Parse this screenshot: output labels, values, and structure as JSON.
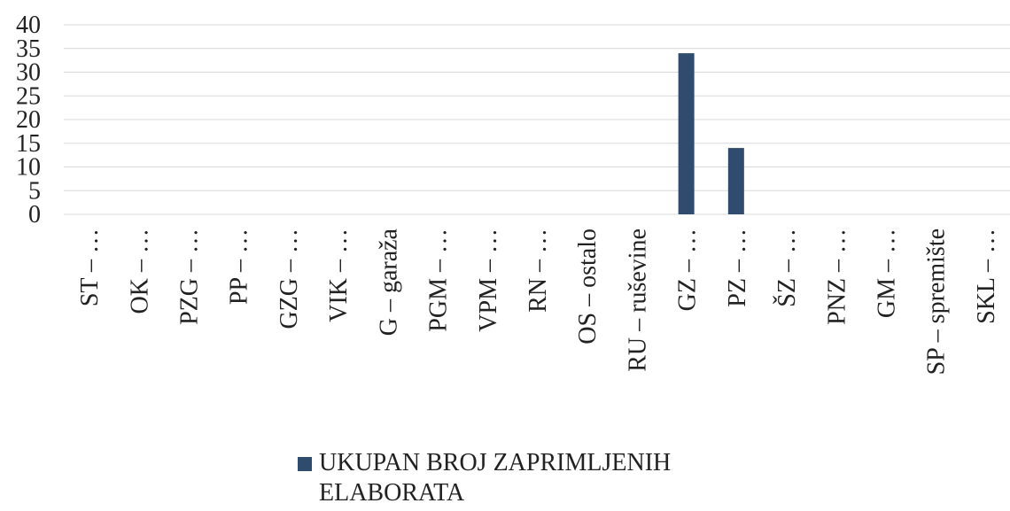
{
  "chart_data": {
    "type": "bar",
    "categories": [
      "ST – …",
      "OK – …",
      "PZG – …",
      "PP – …",
      "GZG – …",
      "VIK – …",
      "G – garaža",
      "PGM – …",
      "VPM – …",
      "RN – …",
      "OS – ostalo",
      "RU – ruševine",
      "GZ – …",
      "PZ – …",
      "ŠZ – …",
      "PNZ – …",
      "GM – …",
      "SP – spremište",
      "SKL – …"
    ],
    "series": [
      {
        "name": "UKUPAN BROJ ZAPRIMLJENIH ELABORATA",
        "color": "#2f4b6e",
        "values": [
          0,
          0,
          0,
          0,
          0,
          0,
          0,
          0,
          0,
          0,
          0,
          0,
          34,
          14,
          0,
          0,
          0,
          0,
          0
        ]
      }
    ],
    "ylim": [
      0,
      40
    ],
    "yticks": [
      0,
      5,
      10,
      15,
      20,
      25,
      30,
      35,
      40
    ],
    "grid": true,
    "legend": "bottom"
  }
}
